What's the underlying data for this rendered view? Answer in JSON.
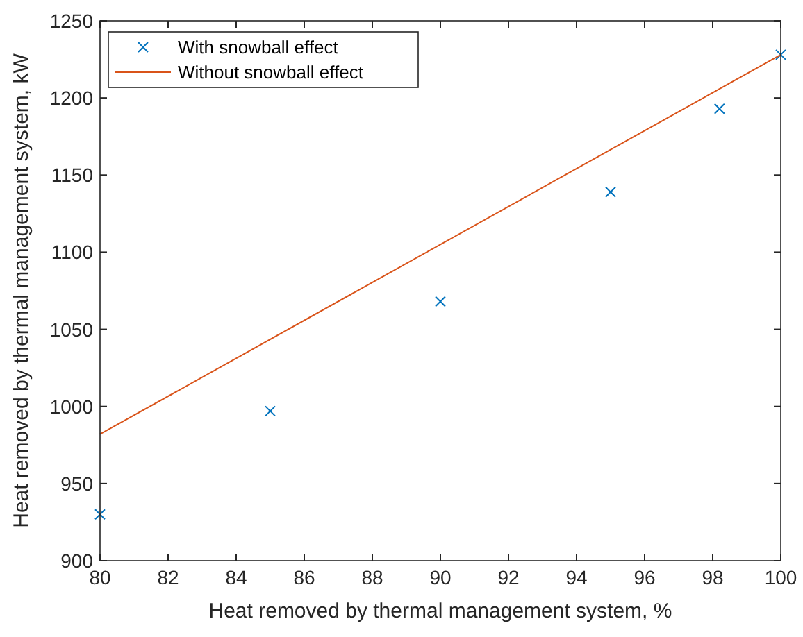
{
  "chart_data": {
    "type": "scatter",
    "xlabel": "Heat removed by thermal management system, %",
    "ylabel": "Heat removed by thermal management system, kW",
    "series": [
      {
        "name": "With snowball effect",
        "color": "#0072bd",
        "marker": "cross",
        "x": [
          80,
          85,
          90,
          95,
          98.2,
          100
        ],
        "values": [
          930,
          997,
          1068,
          1139,
          1193,
          1228
        ]
      },
      {
        "name": "Without snowball effect",
        "type": "line",
        "color": "#d95319",
        "marker": "none",
        "line_style": "solid",
        "x": [
          80,
          100
        ],
        "values": [
          982,
          1228
        ]
      }
    ],
    "xlim": [
      80,
      100
    ],
    "xticks": [
      80,
      82,
      84,
      86,
      88,
      90,
      92,
      94,
      96,
      98,
      100
    ],
    "ylim": [
      900,
      1250
    ],
    "yticks": [
      900,
      950,
      1000,
      1050,
      1100,
      1150,
      1200,
      1250
    ],
    "grid": false,
    "legend": "top left"
  }
}
